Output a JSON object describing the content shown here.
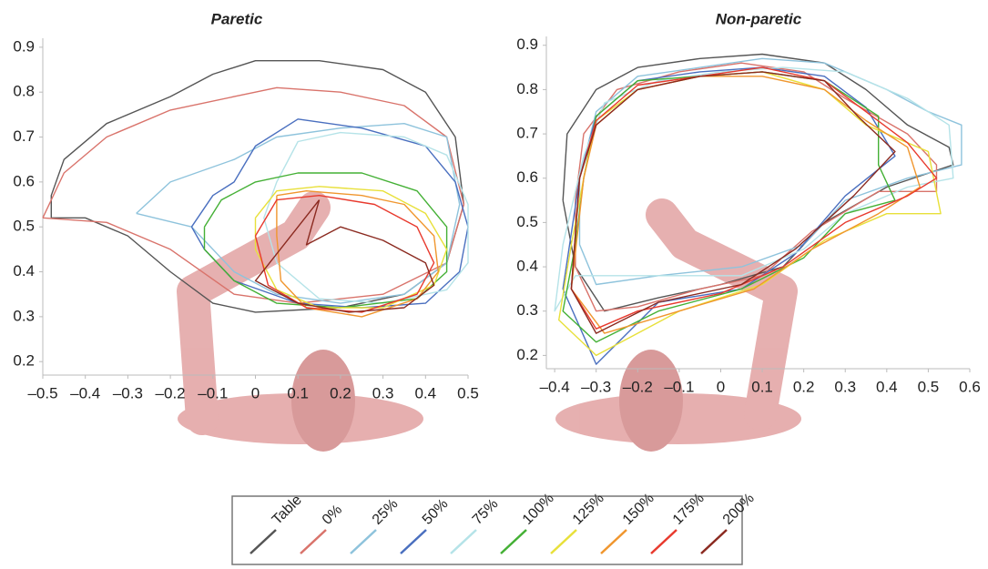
{
  "chart_data": [
    {
      "type": "line",
      "title": "Paretic",
      "xlim": [
        -0.5,
        0.5
      ],
      "ylim": [
        0.17,
        0.92
      ],
      "xticks": [
        {
          "value": -0.5,
          "label": "–0.5"
        },
        {
          "value": -0.4,
          "label": "–0.4"
        },
        {
          "value": -0.3,
          "label": "–0.3"
        },
        {
          "value": -0.2,
          "label": "–0.2"
        },
        {
          "value": -0.1,
          "label": "–0.1"
        },
        0,
        0.1,
        0.2,
        0.3,
        0.4,
        0.5
      ],
      "yticks": [
        0.2,
        0.3,
        0.4,
        0.5,
        0.6,
        0.7,
        0.8,
        0.9
      ],
      "series": [
        {
          "name": "Table",
          "color": "#555555",
          "x": [
            -0.48,
            -0.48,
            -0.45,
            -0.35,
            -0.2,
            -0.1,
            0,
            0.15,
            0.3,
            0.4,
            0.47,
            0.49,
            0.45,
            0.35,
            0.2,
            0,
            -0.1,
            -0.2,
            -0.3,
            -0.4,
            -0.48
          ],
          "values": [
            0.52,
            0.57,
            0.65,
            0.73,
            0.79,
            0.84,
            0.87,
            0.87,
            0.85,
            0.8,
            0.7,
            0.55,
            0.42,
            0.35,
            0.32,
            0.31,
            0.33,
            0.4,
            0.48,
            0.52,
            0.52
          ]
        },
        {
          "name": "0%",
          "color": "#d9736b",
          "x": [
            -0.5,
            -0.45,
            -0.35,
            -0.2,
            -0.05,
            0.05,
            0.2,
            0.35,
            0.45,
            0.49,
            0.45,
            0.3,
            0.1,
            -0.05,
            -0.2,
            -0.35,
            -0.5
          ],
          "values": [
            0.52,
            0.62,
            0.7,
            0.76,
            0.79,
            0.81,
            0.8,
            0.77,
            0.7,
            0.55,
            0.42,
            0.35,
            0.33,
            0.35,
            0.45,
            0.51,
            0.52
          ]
        },
        {
          "name": "25%",
          "color": "#8ec3dc",
          "x": [
            -0.28,
            -0.2,
            -0.05,
            0.05,
            0.2,
            0.35,
            0.45,
            0.48,
            0.45,
            0.35,
            0.2,
            0.05,
            -0.05,
            -0.15,
            -0.28
          ],
          "values": [
            0.53,
            0.6,
            0.65,
            0.7,
            0.72,
            0.73,
            0.7,
            0.55,
            0.42,
            0.35,
            0.33,
            0.35,
            0.4,
            0.5,
            0.53
          ]
        },
        {
          "name": "50%",
          "color": "#4a6fbf",
          "x": [
            -0.15,
            -0.1,
            -0.05,
            0,
            0.1,
            0.25,
            0.4,
            0.47,
            0.5,
            0.48,
            0.4,
            0.25,
            0.1,
            -0.05,
            -0.12,
            -0.15
          ],
          "values": [
            0.5,
            0.57,
            0.6,
            0.68,
            0.74,
            0.72,
            0.68,
            0.6,
            0.5,
            0.4,
            0.33,
            0.32,
            0.33,
            0.38,
            0.45,
            0.5
          ]
        },
        {
          "name": "75%",
          "color": "#b5e3e8",
          "x": [
            0.05,
            0.1,
            0.2,
            0.35,
            0.45,
            0.5,
            0.5,
            0.45,
            0.3,
            0.15,
            0.05,
            0.02,
            0.05
          ],
          "values": [
            0.6,
            0.69,
            0.71,
            0.7,
            0.66,
            0.55,
            0.42,
            0.36,
            0.33,
            0.34,
            0.42,
            0.52,
            0.6
          ]
        },
        {
          "name": "100%",
          "color": "#44b035",
          "x": [
            -0.12,
            -0.08,
            0,
            0.1,
            0.25,
            0.38,
            0.45,
            0.45,
            0.38,
            0.2,
            0.05,
            -0.05,
            -0.12,
            -0.12
          ],
          "values": [
            0.5,
            0.56,
            0.6,
            0.62,
            0.62,
            0.58,
            0.5,
            0.4,
            0.34,
            0.32,
            0.33,
            0.38,
            0.45,
            0.5
          ]
        },
        {
          "name": "125%",
          "color": "#e8e03a",
          "x": [
            0,
            0.05,
            0.15,
            0.3,
            0.4,
            0.45,
            0.42,
            0.3,
            0.15,
            0.05,
            0,
            0
          ],
          "values": [
            0.52,
            0.58,
            0.59,
            0.58,
            0.53,
            0.45,
            0.37,
            0.32,
            0.32,
            0.36,
            0.45,
            0.52
          ]
        },
        {
          "name": "150%",
          "color": "#f0962e",
          "x": [
            0.05,
            0.12,
            0.25,
            0.35,
            0.42,
            0.43,
            0.38,
            0.25,
            0.12,
            0.06,
            0.05,
            0.05
          ],
          "values": [
            0.57,
            0.58,
            0.57,
            0.55,
            0.48,
            0.4,
            0.34,
            0.3,
            0.32,
            0.38,
            0.48,
            0.57
          ]
        },
        {
          "name": "175%",
          "color": "#e83a2e",
          "x": [
            0,
            0.05,
            0.15,
            0.28,
            0.38,
            0.42,
            0.38,
            0.25,
            0.12,
            0.03,
            0
          ],
          "values": [
            0.48,
            0.56,
            0.57,
            0.55,
            0.5,
            0.42,
            0.35,
            0.31,
            0.32,
            0.37,
            0.48
          ]
        },
        {
          "name": "200%",
          "color": "#8b2a20",
          "x": [
            0.15,
            0.12,
            0.2,
            0.3,
            0.4,
            0.42,
            0.35,
            0.22,
            0.1,
            0,
            0.05,
            0.15
          ],
          "values": [
            0.56,
            0.46,
            0.5,
            0.47,
            0.42,
            0.37,
            0.32,
            0.31,
            0.33,
            0.38,
            0.44,
            0.56
          ]
        }
      ]
    },
    {
      "type": "line",
      "title": "Non-paretic",
      "xlim": [
        -0.42,
        0.6
      ],
      "ylim": [
        0.17,
        0.92
      ],
      "xticks": [
        {
          "value": -0.4,
          "label": "–0.4"
        },
        {
          "value": -0.3,
          "label": "–0.3"
        },
        {
          "value": -0.2,
          "label": "–0.2"
        },
        {
          "value": -0.1,
          "label": "–0.1"
        },
        0,
        0.1,
        0.2,
        0.3,
        0.4,
        0.5,
        0.6
      ],
      "yticks": [
        0.2,
        0.3,
        0.4,
        0.5,
        0.6,
        0.7,
        0.8,
        0.9
      ],
      "series": [
        {
          "color": "#555555",
          "x": [
            -0.38,
            -0.37,
            -0.3,
            -0.2,
            -0.05,
            0.1,
            0.25,
            0.35,
            0.45,
            0.55,
            0.56,
            0.4,
            0.25,
            0.15,
            0,
            -0.15,
            -0.28,
            -0.35,
            -0.38
          ],
          "values": [
            0.55,
            0.7,
            0.8,
            0.85,
            0.87,
            0.88,
            0.86,
            0.8,
            0.72,
            0.67,
            0.63,
            0.58,
            0.5,
            0.4,
            0.36,
            0.33,
            0.3,
            0.4,
            0.55
          ]
        },
        {
          "color": "#d9736b",
          "x": [
            -0.35,
            -0.33,
            -0.25,
            -0.1,
            0.05,
            0.2,
            0.3,
            0.45,
            0.52,
            0.52,
            0.38,
            0.22,
            0.1,
            -0.05,
            -0.2,
            -0.3,
            -0.35,
            -0.35
          ],
          "values": [
            0.55,
            0.7,
            0.8,
            0.84,
            0.86,
            0.84,
            0.78,
            0.7,
            0.63,
            0.57,
            0.57,
            0.48,
            0.38,
            0.35,
            0.31,
            0.3,
            0.4,
            0.55
          ]
        },
        {
          "color": "#8ec3dc",
          "x": [
            -0.34,
            -0.3,
            -0.2,
            -0.05,
            0.1,
            0.25,
            0.4,
            0.5,
            0.58,
            0.58,
            0.45,
            0.3,
            0.2,
            0.05,
            -0.15,
            -0.3,
            -0.34,
            -0.34
          ],
          "values": [
            0.6,
            0.75,
            0.83,
            0.85,
            0.87,
            0.86,
            0.8,
            0.75,
            0.72,
            0.63,
            0.6,
            0.55,
            0.45,
            0.4,
            0.38,
            0.36,
            0.45,
            0.6
          ]
        },
        {
          "color": "#4a6fbf",
          "x": [
            -0.34,
            -0.3,
            -0.2,
            -0.05,
            0.1,
            0.25,
            0.35,
            0.42,
            0.3,
            0.18,
            0.05,
            -0.15,
            -0.3,
            -0.38,
            -0.34
          ],
          "values": [
            0.6,
            0.74,
            0.82,
            0.84,
            0.85,
            0.83,
            0.76,
            0.65,
            0.56,
            0.43,
            0.35,
            0.32,
            0.18,
            0.35,
            0.6
          ]
        },
        {
          "color": "#b5e3e8",
          "x": [
            -0.33,
            -0.28,
            -0.15,
            0,
            0.15,
            0.3,
            0.45,
            0.55,
            0.56,
            0.45,
            0.3,
            0.2,
            0.05,
            -0.15,
            -0.35,
            -0.4,
            -0.38,
            -0.33
          ],
          "values": [
            0.65,
            0.77,
            0.82,
            0.84,
            0.85,
            0.84,
            0.78,
            0.72,
            0.6,
            0.58,
            0.52,
            0.44,
            0.38,
            0.38,
            0.38,
            0.3,
            0.45,
            0.65
          ]
        },
        {
          "color": "#44b035",
          "x": [
            -0.33,
            -0.3,
            -0.2,
            -0.05,
            0.1,
            0.25,
            0.38,
            0.38,
            0.42,
            0.3,
            0.2,
            0.05,
            -0.15,
            -0.3,
            -0.38,
            -0.35,
            -0.33
          ],
          "values": [
            0.6,
            0.74,
            0.82,
            0.83,
            0.84,
            0.82,
            0.74,
            0.63,
            0.55,
            0.52,
            0.42,
            0.35,
            0.3,
            0.23,
            0.3,
            0.45,
            0.6
          ]
        },
        {
          "color": "#e8e03a",
          "x": [
            -0.33,
            -0.3,
            -0.2,
            -0.05,
            0.1,
            0.25,
            0.35,
            0.5,
            0.53,
            0.4,
            0.25,
            0.1,
            -0.1,
            -0.3,
            -0.39,
            -0.36,
            -0.33
          ],
          "values": [
            0.6,
            0.73,
            0.8,
            0.83,
            0.84,
            0.8,
            0.72,
            0.66,
            0.52,
            0.52,
            0.46,
            0.36,
            0.3,
            0.2,
            0.28,
            0.45,
            0.6
          ]
        },
        {
          "color": "#f0962e",
          "x": [
            -0.33,
            -0.3,
            -0.2,
            -0.05,
            0.1,
            0.25,
            0.35,
            0.45,
            0.48,
            0.38,
            0.22,
            0.08,
            -0.1,
            -0.28,
            -0.36,
            -0.33
          ],
          "values": [
            0.6,
            0.72,
            0.8,
            0.83,
            0.83,
            0.8,
            0.73,
            0.67,
            0.58,
            0.52,
            0.44,
            0.35,
            0.3,
            0.25,
            0.35,
            0.6
          ]
        },
        {
          "color": "#e83a2e",
          "x": [
            -0.34,
            -0.3,
            -0.2,
            -0.05,
            0.1,
            0.25,
            0.35,
            0.45,
            0.52,
            0.45,
            0.3,
            0.15,
            0,
            -0.2,
            -0.3,
            -0.36,
            -0.34
          ],
          "values": [
            0.6,
            0.73,
            0.81,
            0.83,
            0.85,
            0.82,
            0.75,
            0.68,
            0.6,
            0.56,
            0.5,
            0.4,
            0.34,
            0.3,
            0.26,
            0.35,
            0.6
          ]
        },
        {
          "color": "#8b2a20",
          "x": [
            -0.34,
            -0.3,
            -0.2,
            -0.05,
            0.1,
            0.25,
            0.33,
            0.42,
            0.32,
            0.18,
            0.05,
            -0.15,
            -0.3,
            -0.36,
            -0.34
          ],
          "values": [
            0.6,
            0.72,
            0.8,
            0.83,
            0.84,
            0.82,
            0.74,
            0.66,
            0.56,
            0.44,
            0.36,
            0.32,
            0.25,
            0.35,
            0.6
          ]
        }
      ]
    }
  ]
}
